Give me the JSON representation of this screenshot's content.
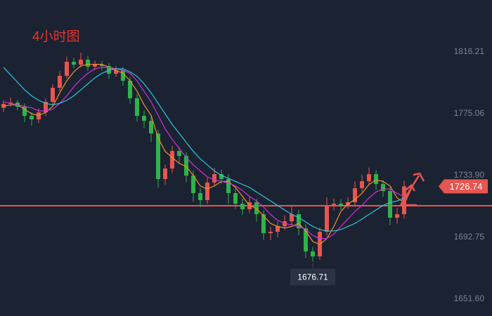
{
  "chart_data": {
    "type": "candlestick",
    "title": "4小时图",
    "open": [
      1779.0,
      1781.6,
      1782.54,
      1779.73,
      1773.65,
      1771.31,
      1775.99,
      1783.0,
      1792.36,
      1800.31,
      1809.66,
      1807.79,
      1811.07,
      1806.39,
      1807.79,
      1806.86,
      1801.71,
      1804.05,
      1797.03,
      1785.34,
      1773.65,
      1770.38,
      1761.96,
      1731.56,
      1738.57,
      1750.26,
      1746.99,
      1733.89,
      1722.2,
      1717.53,
      1729.22,
      1734.83,
      1731.56,
      1722.2,
      1715.19,
      1711.45,
      1716.12,
      1708.17,
      1695.54,
      1696.48,
      1700.22,
      1703.49,
      1708.17,
      1698.82,
      1683.38,
      1680.11,
      1696.48,
      1714.25,
      1715.19,
      1714.25,
      1716.12,
      1725.48,
      1730.15,
      1734.83,
      1728.28,
      1723.61,
      1705.83,
      1708.17
    ],
    "high": [
      1784.1,
      1785.9,
      1784.3,
      1782.0,
      1776.1,
      1778.6,
      1785.4,
      1794.8,
      1803.5,
      1813.2,
      1812.4,
      1815.8,
      1813.6,
      1810.5,
      1810.2,
      1808.9,
      1806.8,
      1806.2,
      1799.5,
      1788.0,
      1777.2,
      1773.1,
      1764.3,
      1741.2,
      1753.8,
      1753.1,
      1749.4,
      1737.0,
      1725.6,
      1732.4,
      1739.1,
      1737.9,
      1734.7,
      1725.3,
      1718.6,
      1719.4,
      1718.5,
      1710.6,
      1699.8,
      1703.1,
      1707.5,
      1713.6,
      1711.0,
      1701.5,
      1686.2,
      1699.2,
      1719.3,
      1718.7,
      1718.1,
      1719.5,
      1729.9,
      1734.6,
      1739.2,
      1737.6,
      1731.0,
      1726.3,
      1712.4,
      1730.5
    ],
    "low": [
      1776.2,
      1779.8,
      1777.5,
      1769.4,
      1767.2,
      1768.9,
      1773.5,
      1781.1,
      1790.2,
      1798.6,
      1805.3,
      1805.9,
      1803.8,
      1804.1,
      1803.9,
      1798.4,
      1799.6,
      1793.8,
      1781.7,
      1769.9,
      1765.6,
      1756.4,
      1725.8,
      1727.9,
      1735.6,
      1742.7,
      1729.5,
      1716.3,
      1712.8,
      1715.0,
      1726.6,
      1728.4,
      1714.9,
      1711.6,
      1707.8,
      1708.9,
      1703.3,
      1691.2,
      1690.9,
      1692.7,
      1697.8,
      1701.2,
      1694.1,
      1678.9,
      1676.71,
      1677.8,
      1694.0,
      1710.6,
      1711.0,
      1711.8,
      1713.4,
      1722.9,
      1727.5,
      1724.4,
      1719.8,
      1700.9,
      1701.8,
      1705.2
    ],
    "close": [
      1781.6,
      1782.54,
      1779.73,
      1773.65,
      1771.31,
      1775.99,
      1783.0,
      1792.36,
      1800.31,
      1809.66,
      1807.79,
      1811.07,
      1806.39,
      1807.79,
      1806.86,
      1801.71,
      1804.05,
      1797.03,
      1785.34,
      1773.65,
      1770.38,
      1761.96,
      1731.56,
      1738.57,
      1750.26,
      1746.99,
      1733.89,
      1722.2,
      1717.53,
      1729.22,
      1734.83,
      1731.56,
      1722.2,
      1715.19,
      1711.45,
      1716.12,
      1708.17,
      1695.54,
      1696.48,
      1700.22,
      1703.49,
      1708.17,
      1698.82,
      1683.38,
      1680.11,
      1696.48,
      1714.25,
      1715.19,
      1714.25,
      1716.12,
      1725.48,
      1730.15,
      1734.83,
      1728.28,
      1723.61,
      1705.83,
      1708.17,
      1726.74
    ],
    "up_color": "#e8554e",
    "down_color": "#2fb34a",
    "series": [
      {
        "color": "#f0902a",
        "values": [
          1780,
          1781,
          1781,
          1778,
          1775,
          1774,
          1776,
          1780,
          1789,
          1797,
          1803,
          1807,
          1808,
          1808,
          1808,
          1806,
          1804,
          1802,
          1797,
          1790,
          1781,
          1774,
          1759,
          1750,
          1746,
          1742,
          1740,
          1734,
          1727,
          1725,
          1727,
          1730,
          1730,
          1726,
          1720,
          1714,
          1712,
          1707,
          1702,
          1700,
          1699,
          1700,
          1702,
          1697,
          1690,
          1688,
          1692,
          1700,
          1710,
          1715,
          1718,
          1722,
          1728,
          1731,
          1730,
          1727,
          1719,
          1716
        ]
      },
      {
        "color": "#d030d8",
        "values": [
          1783,
          1782,
          1781,
          1780,
          1779,
          1777,
          1777,
          1778,
          1782,
          1787,
          1793,
          1798,
          1802,
          1805,
          1806,
          1806,
          1805,
          1804,
          1802,
          1797,
          1790,
          1783,
          1774,
          1765,
          1758,
          1752,
          1746,
          1741,
          1737,
          1733,
          1731,
          1730,
          1729,
          1727,
          1724,
          1720,
          1717,
          1713,
          1708,
          1704,
          1702,
          1701,
          1700,
          1698,
          1694,
          1692,
          1692,
          1695,
          1700,
          1705,
          1710,
          1714,
          1719,
          1723,
          1725,
          1725,
          1722,
          1720
        ]
      },
      {
        "color": "#2ec6dc",
        "values": [
          1806,
          1801,
          1796,
          1791,
          1787,
          1784,
          1782,
          1781,
          1782,
          1784,
          1787,
          1791,
          1795,
          1799,
          1802,
          1804,
          1805,
          1805,
          1803,
          1800,
          1795,
          1789,
          1782,
          1775,
          1768,
          1762,
          1756,
          1750,
          1745,
          1741,
          1737,
          1734,
          1732,
          1730,
          1728,
          1726,
          1723,
          1720,
          1717,
          1714,
          1711,
          1708,
          1706,
          1703,
          1700,
          1698,
          1697,
          1697,
          1698,
          1700,
          1702,
          1705,
          1708,
          1711,
          1714,
          1716,
          1717,
          1719
        ]
      }
    ],
    "hline": {
      "value": 1713.8,
      "color": "#e8554e"
    },
    "ylim": [
      1640.38,
      1850.82
    ],
    "yticks": [
      {
        "value": 1651.6,
        "label": "1651.60"
      },
      1692.75,
      {
        "value": 1733.9,
        "label": "1733.90"
      },
      1775.06,
      1816.21
    ]
  }
}
